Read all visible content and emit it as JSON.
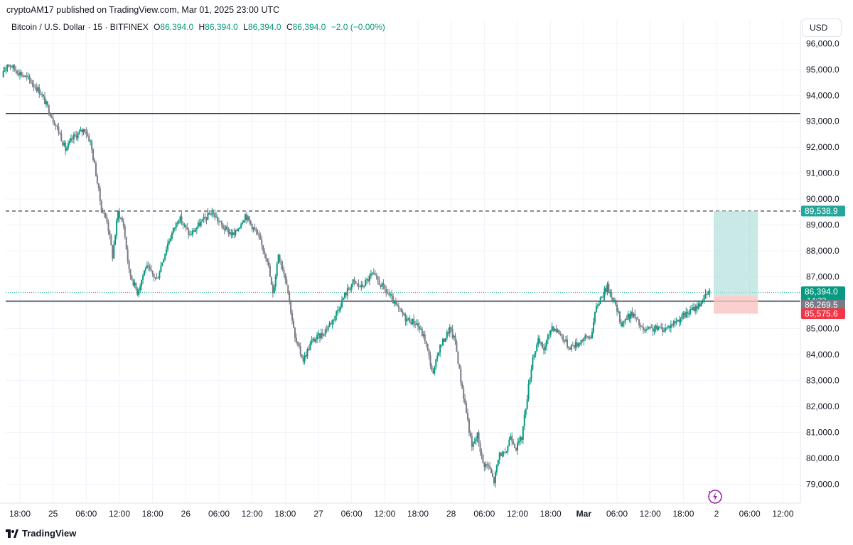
{
  "credit": "cryptoAM17 published on TradingView.com, Mar 01, 2025 23:00 UTC",
  "legend": {
    "symbol": "Bitcoin / U.S. Dollar · 15 · BITFINEX",
    "o_label": "O",
    "o_value": "86,394.0",
    "h_label": "H",
    "h_value": "86,394.0",
    "l_label": "L",
    "l_value": "86,394.0",
    "c_label": "C",
    "c_value": "86,394.0",
    "change": "−2.0 (−0.00%)"
  },
  "currency": "USD",
  "brand": "TradingView",
  "colors": {
    "up": "#089981",
    "down": "#787b86",
    "line": "#131722",
    "target": "#b2dfdb",
    "stop": "#f7c4c2",
    "target_label": "#26a69a",
    "stop_label": "#f23645"
  },
  "chart_data": {
    "type": "candlestick",
    "interval": "15",
    "y_ticks": [
      79000,
      80000,
      81000,
      82000,
      83000,
      84000,
      85000,
      86000,
      87000,
      88000,
      89000,
      90000,
      91000,
      92000,
      93000,
      94000,
      95000,
      96000
    ],
    "y_tick_labels": [
      "79,000.0",
      "80,000.0",
      "81,000.0",
      "82,000.0",
      "83,000.0",
      "84,000.0",
      "85,000.0",
      "86,000.0",
      "87,000.0",
      "88,000.0",
      "89,000.0",
      "90,000.0",
      "91,000.0",
      "92,000.0",
      "93,000.0",
      "94,000.0",
      "95,000.0",
      "96,000.0"
    ],
    "x_ticks": [
      {
        "t": "2025-02-24T18:00",
        "label": "18:00"
      },
      {
        "t": "2025-02-25T00:00",
        "label": "25"
      },
      {
        "t": "2025-02-25T06:00",
        "label": "06:00"
      },
      {
        "t": "2025-02-25T12:00",
        "label": "12:00"
      },
      {
        "t": "2025-02-25T18:00",
        "label": "18:00"
      },
      {
        "t": "2025-02-26T00:00",
        "label": "26"
      },
      {
        "t": "2025-02-26T06:00",
        "label": "06:00"
      },
      {
        "t": "2025-02-26T12:00",
        "label": "12:00"
      },
      {
        "t": "2025-02-26T18:00",
        "label": "18:00"
      },
      {
        "t": "2025-02-27T00:00",
        "label": "27"
      },
      {
        "t": "2025-02-27T06:00",
        "label": "06:00"
      },
      {
        "t": "2025-02-27T12:00",
        "label": "12:00"
      },
      {
        "t": "2025-02-27T18:00",
        "label": "18:00"
      },
      {
        "t": "2025-02-28T00:00",
        "label": "28"
      },
      {
        "t": "2025-02-28T06:00",
        "label": "06:00"
      },
      {
        "t": "2025-02-28T12:00",
        "label": "12:00"
      },
      {
        "t": "2025-02-28T18:00",
        "label": "18:00"
      },
      {
        "t": "2025-03-01T00:00",
        "label": "Mar"
      },
      {
        "t": "2025-03-01T06:00",
        "label": "06:00"
      },
      {
        "t": "2025-03-01T12:00",
        "label": "12:00"
      },
      {
        "t": "2025-03-01T18:00",
        "label": "18:00"
      },
      {
        "t": "2025-03-02T00:00",
        "label": "2"
      },
      {
        "t": "2025-03-02T06:00",
        "label": "06:00"
      },
      {
        "t": "2025-03-02T12:00",
        "label": "12:00"
      }
    ],
    "price_path": [
      [
        "2025-02-24T15:00",
        94700
      ],
      [
        "2025-02-24T16:00",
        95250
      ],
      [
        "2025-02-24T18:00",
        94900
      ],
      [
        "2025-02-24T20:00",
        94600
      ],
      [
        "2025-02-24T22:00",
        94100
      ],
      [
        "2025-02-25T00:00",
        93200
      ],
      [
        "2025-02-25T01:30",
        92500
      ],
      [
        "2025-02-25T02:30",
        91900
      ],
      [
        "2025-02-25T04:00",
        92400
      ],
      [
        "2025-02-25T06:00",
        92700
      ],
      [
        "2025-02-25T07:00",
        92200
      ],
      [
        "2025-02-25T08:00",
        91000
      ],
      [
        "2025-02-25T09:00",
        89600
      ],
      [
        "2025-02-25T10:00",
        89200
      ],
      [
        "2025-02-25T11:00",
        87800
      ],
      [
        "2025-02-25T12:00",
        89500
      ],
      [
        "2025-02-25T13:00",
        89000
      ],
      [
        "2025-02-25T14:00",
        87200
      ],
      [
        "2025-02-25T15:30",
        86400
      ],
      [
        "2025-02-25T17:00",
        87400
      ],
      [
        "2025-02-25T19:00",
        86900
      ],
      [
        "2025-02-25T21:00",
        88300
      ],
      [
        "2025-02-25T23:00",
        89300
      ],
      [
        "2025-02-26T01:00",
        88600
      ],
      [
        "2025-02-26T03:00",
        89100
      ],
      [
        "2025-02-26T05:00",
        89500
      ],
      [
        "2025-02-26T07:00",
        88900
      ],
      [
        "2025-02-26T09:00",
        88600
      ],
      [
        "2025-02-26T11:00",
        89400
      ],
      [
        "2025-02-26T13:00",
        88700
      ],
      [
        "2025-02-26T15:00",
        87700
      ],
      [
        "2025-02-26T16:00",
        86300
      ],
      [
        "2025-02-26T17:00",
        87900
      ],
      [
        "2025-02-26T18:30",
        86800
      ],
      [
        "2025-02-26T20:00",
        84600
      ],
      [
        "2025-02-26T21:30",
        83800
      ],
      [
        "2025-02-26T23:00",
        84500
      ],
      [
        "2025-02-27T01:00",
        84800
      ],
      [
        "2025-02-27T03:00",
        85400
      ],
      [
        "2025-02-27T05:00",
        86300
      ],
      [
        "2025-02-27T06:30",
        86800
      ],
      [
        "2025-02-27T08:00",
        86600
      ],
      [
        "2025-02-27T10:00",
        87100
      ],
      [
        "2025-02-27T11:30",
        86700
      ],
      [
        "2025-02-27T13:00",
        86300
      ],
      [
        "2025-02-27T14:30",
        85800
      ],
      [
        "2025-02-27T16:00",
        85400
      ],
      [
        "2025-02-27T18:00",
        85200
      ],
      [
        "2025-02-27T19:30",
        84600
      ],
      [
        "2025-02-27T21:00",
        83200
      ],
      [
        "2025-02-27T22:00",
        84200
      ],
      [
        "2025-02-28T00:00",
        85000
      ],
      [
        "2025-02-28T01:00",
        84500
      ],
      [
        "2025-02-28T02:00",
        83000
      ],
      [
        "2025-02-28T03:00",
        81800
      ],
      [
        "2025-02-28T04:00",
        80400
      ],
      [
        "2025-02-28T05:00",
        80900
      ],
      [
        "2025-02-28T06:00",
        79800
      ],
      [
        "2025-02-28T07:00",
        79700
      ],
      [
        "2025-02-28T08:00",
        79100
      ],
      [
        "2025-02-28T09:00",
        80200
      ],
      [
        "2025-02-28T10:00",
        80100
      ],
      [
        "2025-02-28T11:00",
        80900
      ],
      [
        "2025-02-28T12:00",
        80400
      ],
      [
        "2025-02-28T13:00",
        80800
      ],
      [
        "2025-02-28T14:00",
        82400
      ],
      [
        "2025-02-28T15:00",
        83900
      ],
      [
        "2025-02-28T16:00",
        84500
      ],
      [
        "2025-02-28T17:00",
        84200
      ],
      [
        "2025-02-28T18:30",
        85100
      ],
      [
        "2025-02-28T20:00",
        84800
      ],
      [
        "2025-02-28T21:30",
        84300
      ],
      [
        "2025-02-28T23:00",
        84400
      ],
      [
        "2025-03-01T00:00",
        84600
      ],
      [
        "2025-03-01T01:30",
        84700
      ],
      [
        "2025-03-01T02:30",
        85800
      ],
      [
        "2025-03-01T03:30",
        86300
      ],
      [
        "2025-03-01T04:30",
        86600
      ],
      [
        "2025-03-01T05:30",
        86200
      ],
      [
        "2025-03-01T07:00",
        85200
      ],
      [
        "2025-03-01T09:00",
        85600
      ],
      [
        "2025-03-01T11:00",
        84900
      ],
      [
        "2025-03-01T13:00",
        85000
      ],
      [
        "2025-03-01T15:00",
        85000
      ],
      [
        "2025-03-01T17:00",
        85300
      ],
      [
        "2025-03-01T19:00",
        85600
      ],
      [
        "2025-03-01T21:00",
        85900
      ],
      [
        "2025-03-01T22:00",
        86200
      ],
      [
        "2025-03-01T23:00",
        86394
      ]
    ],
    "lines": {
      "resistance": 93300,
      "dashed_target": 89538.9,
      "support": 86060
    },
    "position_box": {
      "start": "2025-03-02T00:00",
      "end": "2025-03-02T08:00",
      "entry": 86269.5,
      "target": 89538.9,
      "stop": 85575.6
    },
    "price_labels": [
      {
        "value": 89538.9,
        "text": "89,538.9",
        "kind": "target"
      },
      {
        "value": 86394.0,
        "text": "86,394.0",
        "sub": "14:33",
        "kind": "last"
      },
      {
        "value": 86269.5,
        "text": "86,269.5",
        "kind": "entry"
      },
      {
        "value": 85575.6,
        "text": "85,575.6",
        "kind": "stop"
      }
    ]
  }
}
